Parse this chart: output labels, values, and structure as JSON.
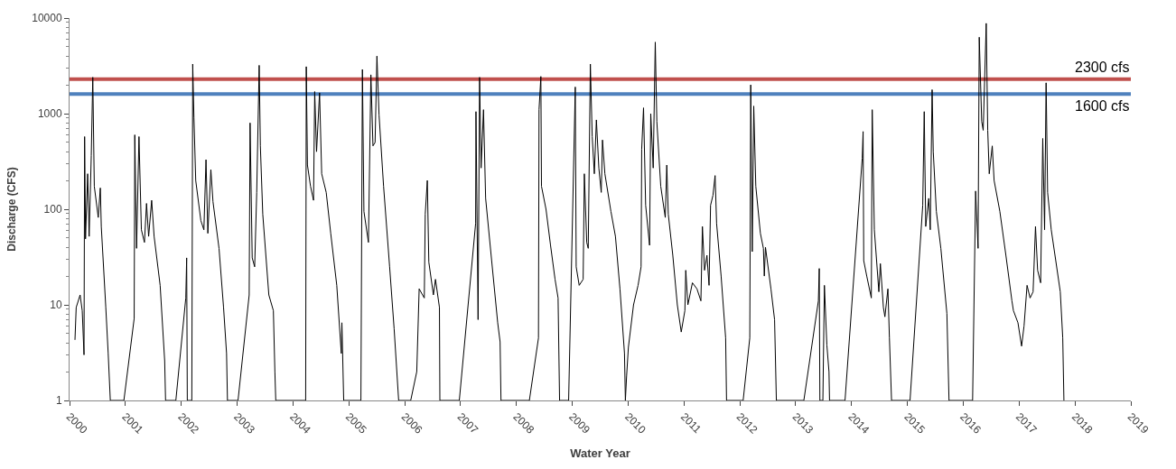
{
  "chart_data": {
    "type": "line",
    "xlabel": "Water Year",
    "ylabel": "Discharge (CFS)",
    "xlim": [
      2000,
      2019
    ],
    "xticks": [
      2000,
      2001,
      2002,
      2003,
      2004,
      2005,
      2006,
      2007,
      2008,
      2009,
      2010,
      2011,
      2012,
      2013,
      2014,
      2015,
      2016,
      2017,
      2018,
      2019
    ],
    "ylim": [
      1,
      10000
    ],
    "yticks": [
      1,
      10,
      100,
      1000,
      10000
    ],
    "log": true,
    "marker": "none",
    "line_style": "solid",
    "ref_lines": [
      {
        "axis": "y",
        "value": 2300,
        "label": "2300 cfs",
        "color": "#c0504d"
      },
      {
        "axis": "y",
        "value": 1600,
        "label": "1600 cfs",
        "color": "#4f81bd"
      }
    ],
    "series": [
      {
        "color": "#000000",
        "x": [
          2000.097,
          2000.119,
          2000.189,
          2000.227,
          2000.259,
          2000.27,
          2000.286,
          2000.324,
          2000.351,
          2000.389,
          2000.416,
          2000.443,
          2000.514,
          2000.551,
          2000.568,
          2000.649,
          2000.692,
          2000.73,
          2000.973,
          2001.157,
          2001.168,
          2001.2,
          2001.243,
          2001.286,
          2001.341,
          2001.378,
          2001.416,
          2001.47,
          2001.514,
          2001.622,
          2001.703,
          2001.719,
          2001.903,
          2002.081,
          2002.097,
          2002.108,
          2002.189,
          2002.205,
          2002.227,
          2002.259,
          2002.351,
          2002.405,
          2002.443,
          2002.476,
          2002.53,
          2002.568,
          2002.676,
          2002.757,
          2002.811,
          2002.827,
          2003.016,
          2003.216,
          2003.232,
          2003.27,
          2003.314,
          2003.351,
          2003.395,
          2003.416,
          2003.459,
          2003.568,
          2003.649,
          2003.676,
          2003.692,
          2004.227,
          2004.238,
          2004.259,
          2004.314,
          2004.368,
          2004.389,
          2004.422,
          2004.476,
          2004.514,
          2004.595,
          2004.676,
          2004.784,
          2004.865,
          2004.876,
          2004.908,
          2005.216,
          2005.243,
          2005.27,
          2005.351,
          2005.395,
          2005.432,
          2005.47,
          2005.503,
          2005.541,
          2005.622,
          2005.73,
          2005.811,
          2005.892,
          2006.108,
          2006.216,
          2006.259,
          2006.351,
          2006.368,
          2006.405,
          2006.432,
          2006.514,
          2006.551,
          2006.622,
          2006.63,
          2006.978,
          2007.27,
          2007.276,
          2007.314,
          2007.341,
          2007.368,
          2007.411,
          2007.449,
          2007.557,
          2007.665,
          2007.708,
          2007.724,
          2008.232,
          2008.395,
          2008.405,
          2008.438,
          2008.449,
          2008.53,
          2008.611,
          2008.692,
          2008.746,
          2008.773,
          2008.935,
          2009.054,
          2009.07,
          2009.124,
          2009.195,
          2009.216,
          2009.259,
          2009.286,
          2009.324,
          2009.357,
          2009.395,
          2009.432,
          2009.476,
          2009.519,
          2009.541,
          2009.584,
          2009.692,
          2009.773,
          2009.854,
          2009.935,
          2009.951,
          2009.973,
          2010.005,
          2010.097,
          2010.178,
          2010.232,
          2010.243,
          2010.276,
          2010.314,
          2010.384,
          2010.405,
          2010.449,
          2010.486,
          2010.514,
          2010.584,
          2010.665,
          2010.692,
          2010.719,
          2010.8,
          2010.881,
          2010.951,
          2011.016,
          2011.032,
          2011.07,
          2011.151,
          2011.232,
          2011.303,
          2011.33,
          2011.368,
          2011.411,
          2011.449,
          2011.476,
          2011.519,
          2011.557,
          2011.584,
          2011.665,
          2011.746,
          2011.762,
          2012.059,
          2012.178,
          2012.195,
          2012.222,
          2012.249,
          2012.286,
          2012.368,
          2012.422,
          2012.438,
          2012.459,
          2012.557,
          2012.622,
          2012.654,
          2013.146,
          2013.406,
          2013.422,
          2013.433,
          2013.487,
          2013.514,
          2013.558,
          2013.596,
          2013.606,
          2013.883,
          2014.191,
          2014.207,
          2014.218,
          2014.272,
          2014.354,
          2014.37,
          2014.408,
          2014.489,
          2014.516,
          2014.57,
          2014.597,
          2014.651,
          2014.678,
          2014.716,
          2015.047,
          2015.274,
          2015.301,
          2015.328,
          2015.382,
          2015.409,
          2015.442,
          2015.463,
          2015.518,
          2015.599,
          2015.707,
          2015.745,
          2016.167,
          2016.221,
          2016.265,
          2016.286,
          2016.33,
          2016.357,
          2016.411,
          2016.438,
          2016.465,
          2016.519,
          2016.552,
          2016.655,
          2016.763,
          2016.871,
          2016.898,
          2016.979,
          2017.044,
          2017.088,
          2017.142,
          2017.196,
          2017.25,
          2017.293,
          2017.331,
          2017.385,
          2017.423,
          2017.456,
          2017.483,
          2017.51,
          2017.575,
          2017.656,
          2017.737,
          2017.781,
          2017.802
        ],
        "values": [
          4.3,
          9.4,
          12.7,
          8.7,
          3,
          575,
          49,
          235,
          52,
          365,
          2400,
          174,
          82,
          167,
          66,
          9.4,
          3.1,
          1,
          1,
          7.2,
          600,
          39,
          575,
          61,
          45,
          115,
          52,
          124,
          52,
          16,
          2.6,
          1,
          1,
          11.8,
          31,
          1,
          1,
          3300,
          900,
          200,
          76,
          61,
          330,
          56,
          260,
          120,
          39,
          9.4,
          3.1,
          1,
          1,
          12.7,
          800,
          31,
          25,
          150,
          3200,
          460,
          89,
          12.7,
          8.7,
          2,
          1,
          1,
          3100,
          290,
          174,
          124,
          1700,
          400,
          1650,
          235,
          150,
          56,
          16,
          3.1,
          6.5,
          1,
          1,
          2900,
          95,
          45,
          2550,
          460,
          500,
          4000,
          970,
          174,
          25,
          5.6,
          1,
          1,
          2,
          14.7,
          11.8,
          89,
          200,
          28,
          12.7,
          18.5,
          9.4,
          1,
          1,
          71,
          1050,
          7,
          2400,
          270,
          1100,
          130,
          29,
          6.5,
          4.1,
          1,
          1,
          4.5,
          1100,
          2450,
          174,
          100,
          42,
          18.5,
          11.8,
          1,
          1,
          1900,
          25,
          16,
          18.5,
          235,
          45,
          39,
          3300,
          575,
          235,
          860,
          270,
          150,
          530,
          235,
          95,
          52,
          14.7,
          3.1,
          1,
          1.8,
          3.6,
          10,
          16,
          25,
          425,
          1150,
          110,
          42,
          1000,
          270,
          5600,
          830,
          174,
          82,
          290,
          89,
          33,
          10,
          5.2,
          8.7,
          23,
          10,
          17,
          14.7,
          11,
          66,
          23,
          33,
          16,
          110,
          140,
          225,
          71,
          20,
          4.5,
          1,
          1,
          4.5,
          2000,
          36,
          1200,
          174,
          56,
          39,
          20,
          40,
          14.7,
          7,
          1,
          1,
          11,
          24,
          1,
          1,
          16,
          3.8,
          2,
          1,
          1,
          340,
          650,
          29,
          20,
          11.8,
          1100,
          61,
          13.7,
          27,
          9.4,
          7.5,
          14.7,
          4.5,
          1,
          1,
          110,
          1050,
          66,
          130,
          61,
          1780,
          400,
          95,
          39,
          8.1,
          1,
          1,
          155,
          39,
          6300,
          830,
          670,
          8800,
          670,
          235,
          460,
          200,
          95,
          33,
          11,
          8.7,
          6.5,
          3.7,
          6,
          16,
          11.8,
          13.7,
          66,
          23,
          17,
          550,
          61,
          2100,
          150,
          61,
          29,
          13.7,
          4.5,
          1
        ]
      }
    ]
  }
}
